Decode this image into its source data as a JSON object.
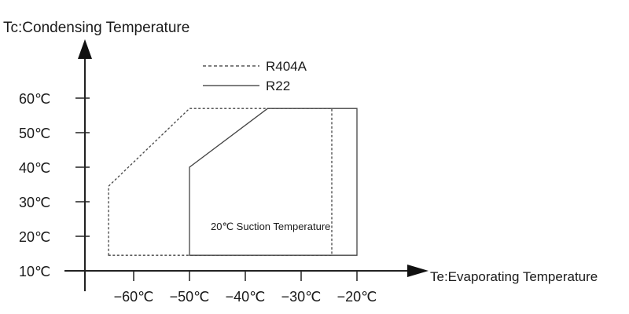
{
  "chart_data": {
    "type": "area",
    "title": "",
    "ylabel": "Tc:Condensing Temperature",
    "xlabel": "Te:Evaporating   Temperature",
    "x_ticks": [
      {
        "value": -60,
        "label": "−60℃"
      },
      {
        "value": -50,
        "label": "−50℃"
      },
      {
        "value": -40,
        "label": "−40℃"
      },
      {
        "value": -30,
        "label": "−30℃"
      },
      {
        "value": -20,
        "label": "−20℃"
      }
    ],
    "y_ticks": [
      {
        "value": 10,
        "label": "10℃"
      },
      {
        "value": 20,
        "label": "20℃"
      },
      {
        "value": 30,
        "label": "30℃"
      },
      {
        "value": 40,
        "label": "40℃"
      },
      {
        "value": 50,
        "label": "50℃"
      },
      {
        "value": 60,
        "label": "60℃"
      }
    ],
    "xlim": [
      -70,
      -10
    ],
    "ylim": [
      10,
      62
    ],
    "grid": false,
    "legend_position": "top-center",
    "series": [
      {
        "name": "R404A",
        "style": "dashed",
        "color": "#444444",
        "points": [
          [
            -64.5,
            14.5
          ],
          [
            -64.5,
            34.5
          ],
          [
            -50,
            57
          ],
          [
            -24.5,
            57
          ],
          [
            -24.5,
            14.5
          ]
        ]
      },
      {
        "name": "R22",
        "style": "solid",
        "color": "#444444",
        "points": [
          [
            -50,
            14.5
          ],
          [
            -50,
            40
          ],
          [
            -36,
            57
          ],
          [
            -20,
            57
          ],
          [
            -20,
            14.5
          ]
        ]
      }
    ],
    "annotations": [
      {
        "text": "20℃ Suction Temperature",
        "x": -37.5,
        "y": 23.5
      }
    ]
  }
}
